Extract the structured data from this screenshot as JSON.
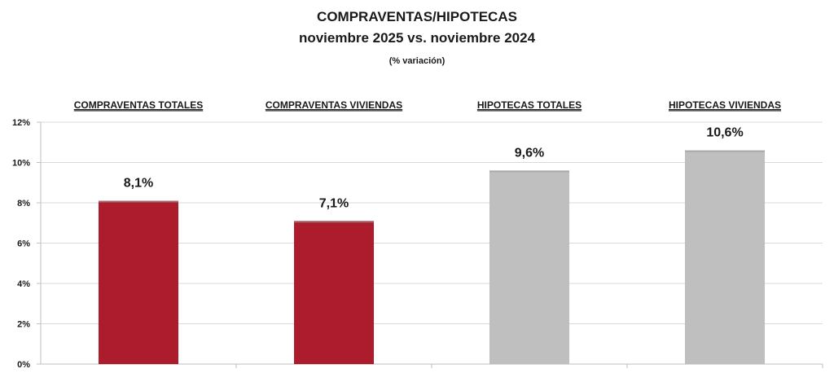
{
  "chart_data": {
    "type": "bar",
    "title": "COMPRAVENTAS/HIPOTECAS",
    "subtitle": "noviembre 2025 vs. noviembre 2024",
    "note": "(% variación)",
    "categories": [
      "COMPRAVENTAS TOTALES",
      "COMPRAVENTAS VIVIENDAS",
      "HIPOTECAS TOTALES",
      "HIPOTECAS VIVIENDAS"
    ],
    "values": [
      8.1,
      7.1,
      9.6,
      10.6
    ],
    "data_labels": [
      "8,1%",
      "7,1%",
      "9,6%",
      "10,6%"
    ],
    "colors": [
      "#ad1c2c",
      "#ad1c2c",
      "#bfbfbf",
      "#bfbfbf"
    ],
    "ylim": [
      0,
      12
    ],
    "y_ticks": [
      0,
      2,
      4,
      6,
      8,
      10,
      12
    ],
    "y_tick_labels": [
      "0%",
      "2%",
      "4%",
      "6%",
      "8%",
      "10%",
      "12%"
    ],
    "grid": true,
    "legend": "none"
  }
}
